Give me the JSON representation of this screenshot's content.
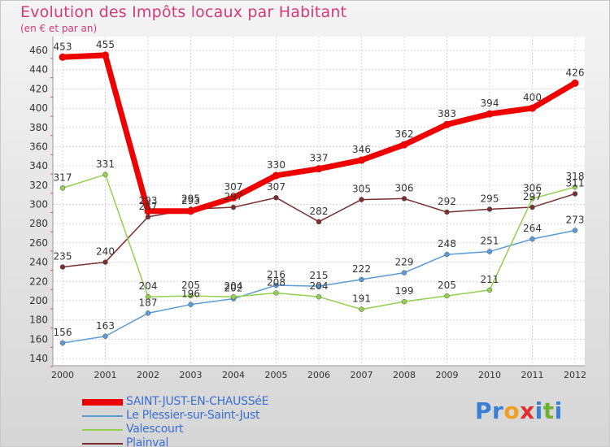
{
  "header": {
    "title": "Evolution des Impôts locaux par Habitant",
    "subtitle": "(en € et par an)"
  },
  "chart_data": {
    "type": "line",
    "title": "Evolution des Impôts locaux par Habitant",
    "subtitle": "(en € et par an)",
    "xlabel": "",
    "ylabel": "",
    "ylim": [
      140,
      460
    ],
    "y_ticks": [
      140,
      160,
      180,
      200,
      220,
      240,
      260,
      280,
      300,
      320,
      340,
      360,
      380,
      400,
      420,
      440,
      460
    ],
    "categories": [
      "2000",
      "2001",
      "2002",
      "2003",
      "2004",
      "2005",
      "2006",
      "2007",
      "2008",
      "2009",
      "2010",
      "2011",
      "2012"
    ],
    "grid": true,
    "legend_position": "bottom-left",
    "series": [
      {
        "name": "Plainval",
        "color": "#7a2e2e",
        "values": [
          235,
          240,
          287,
          295,
          297,
          307,
          282,
          305,
          306,
          292,
          295,
          297,
          311
        ]
      },
      {
        "name": "Le Plessier-sur-Saint-Just",
        "color": "#5b9bd5",
        "values": [
          156,
          163,
          187,
          196,
          202,
          216,
          215,
          222,
          229,
          248,
          251,
          264,
          273
        ]
      },
      {
        "name": "Valescourt",
        "color": "#92d050",
        "values": [
          317,
          331,
          204,
          205,
          204,
          208,
          204,
          191,
          199,
          205,
          211,
          306,
          318
        ]
      },
      {
        "name": "SAINT-JUST-EN-CHAUSSéE",
        "color": "#ee0000",
        "values": [
          453,
          455,
          293,
          293,
          307,
          330,
          337,
          346,
          362,
          383,
          394,
          400,
          426
        ]
      }
    ],
    "legend_order": [
      3,
      1,
      2,
      0
    ]
  },
  "logo": {
    "letters": [
      "P",
      "r",
      "o",
      "x",
      "i",
      "t",
      "i"
    ],
    "colors": [
      "#3a7fd5",
      "#3a7fd5",
      "#f0a020",
      "#e03030",
      "#3a7fd5",
      "#70b030",
      "#3a7fd5"
    ]
  }
}
